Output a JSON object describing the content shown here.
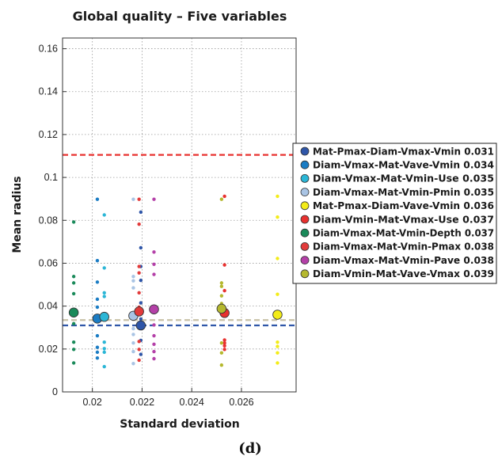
{
  "panel_label": "(d)",
  "chart_data": {
    "type": "scatter",
    "title": "Global quality – Five variables",
    "xlabel": "Standard deviation",
    "ylabel": "Mean radius",
    "xlim": [
      0.0188,
      0.0282
    ],
    "ylim": [
      0,
      0.165
    ],
    "x_ticks": [
      0.02,
      0.022,
      0.024,
      0.026
    ],
    "x_tick_labels": [
      "0.02",
      "0.022",
      "0.024",
      "0.026"
    ],
    "y_ticks": [
      0,
      0.02,
      0.04,
      0.06,
      0.08,
      0.1,
      0.12,
      0.14,
      0.16
    ],
    "y_tick_labels": [
      "0",
      "0.02",
      "0.04",
      "0.06",
      "0.08",
      "0.1",
      "0.12",
      "0.14",
      "0.16"
    ],
    "grid": true,
    "legend_position": "right",
    "reference_lines": [
      {
        "y": 0.1105,
        "color": "#e8312f",
        "style": "dashed"
      },
      {
        "y": 0.0335,
        "color": "#c8c0a6",
        "style": "dashed"
      },
      {
        "y": 0.031,
        "color": "#2f56a8",
        "style": "dashed"
      }
    ],
    "series": [
      {
        "name": "Mat-Pmax-Diam-Vmax-Vmin 0.031",
        "color": "#2f56a8",
        "mean": [
          0.02195,
          0.031
        ],
        "points": [
          [
            0.02195,
            0.0838
          ],
          [
            0.02195,
            0.0672
          ],
          [
            0.02195,
            0.0585
          ],
          [
            0.02195,
            0.052
          ],
          [
            0.02195,
            0.0415
          ],
          [
            0.02195,
            0.034
          ],
          [
            0.02195,
            0.024
          ],
          [
            0.02195,
            0.0175
          ]
        ]
      },
      {
        "name": "Diam-Vmax-Mat-Vave-Vmin 0.034",
        "color": "#1a7cc4",
        "mean": [
          0.0202,
          0.0342
        ],
        "points": [
          [
            0.0202,
            0.0898
          ],
          [
            0.0202,
            0.0612
          ],
          [
            0.0202,
            0.0512
          ],
          [
            0.0202,
            0.0432
          ],
          [
            0.0202,
            0.0395
          ],
          [
            0.0202,
            0.0262
          ],
          [
            0.0202,
            0.0208
          ],
          [
            0.0202,
            0.0185
          ],
          [
            0.0202,
            0.0158
          ]
        ]
      },
      {
        "name": "Diam-Vmax-Mat-Vmin-Use 0.035",
        "color": "#2bb6d6",
        "mean": [
          0.02048,
          0.035
        ],
        "points": [
          [
            0.02048,
            0.0825
          ],
          [
            0.02048,
            0.0578
          ],
          [
            0.02048,
            0.0462
          ],
          [
            0.02048,
            0.0445
          ],
          [
            0.02048,
            0.0232
          ],
          [
            0.02048,
            0.0202
          ],
          [
            0.02048,
            0.0185
          ],
          [
            0.02048,
            0.0118
          ]
        ]
      },
      {
        "name": "Diam-Vmax-Mat-Vmin-Pmin 0.035",
        "color": "#a9c4e4",
        "mean": [
          0.02165,
          0.0355
        ],
        "points": [
          [
            0.02165,
            0.0898
          ],
          [
            0.02165,
            0.0538
          ],
          [
            0.02165,
            0.0518
          ],
          [
            0.02165,
            0.0485
          ],
          [
            0.02165,
            0.0295
          ],
          [
            0.02165,
            0.0268
          ],
          [
            0.02165,
            0.0228
          ],
          [
            0.02165,
            0.0188
          ],
          [
            0.02165,
            0.0132
          ]
        ]
      },
      {
        "name": "Mat-Pmax-Diam-Vave-Vmin 0.036",
        "color": "#f3ec18",
        "mean": [
          0.02745,
          0.036
        ],
        "points": [
          [
            0.02745,
            0.0912
          ],
          [
            0.02745,
            0.0815
          ],
          [
            0.02745,
            0.0622
          ],
          [
            0.02745,
            0.0455
          ],
          [
            0.02745,
            0.0232
          ],
          [
            0.02745,
            0.0212
          ],
          [
            0.02745,
            0.0182
          ],
          [
            0.02745,
            0.0135
          ]
        ]
      },
      {
        "name": "Diam-Vmin-Mat-Vmax-Use 0.037",
        "color": "#e8312f",
        "mean": [
          0.02532,
          0.0368
        ],
        "points": [
          [
            0.02532,
            0.0912
          ],
          [
            0.02532,
            0.0592
          ],
          [
            0.02532,
            0.0472
          ],
          [
            0.02532,
            0.0242
          ],
          [
            0.02532,
            0.0228
          ],
          [
            0.02532,
            0.0215
          ],
          [
            0.02532,
            0.0198
          ]
        ]
      },
      {
        "name": "Diam-Vmax-Mat-Vmin-Depth 0.037",
        "color": "#1a8a5a",
        "mean": [
          0.01925,
          0.037
        ],
        "points": [
          [
            0.01925,
            0.0792
          ],
          [
            0.01925,
            0.0538
          ],
          [
            0.01925,
            0.0508
          ],
          [
            0.01925,
            0.0458
          ],
          [
            0.01925,
            0.0318
          ],
          [
            0.01925,
            0.0232
          ],
          [
            0.01925,
            0.0198
          ],
          [
            0.01925,
            0.0135
          ]
        ]
      },
      {
        "name": "Diam-Vmax-Mat-Vmin-Pmax 0.038",
        "color": "#e23a3a",
        "mean": [
          0.02188,
          0.0375
        ],
        "points": [
          [
            0.02188,
            0.0898
          ],
          [
            0.02188,
            0.0782
          ],
          [
            0.02188,
            0.0585
          ],
          [
            0.02188,
            0.0555
          ],
          [
            0.02188,
            0.0462
          ],
          [
            0.02188,
            0.0395
          ],
          [
            0.02188,
            0.0235
          ],
          [
            0.02188,
            0.0198
          ],
          [
            0.02188,
            0.0148
          ]
        ]
      },
      {
        "name": "Diam-Vmax-Mat-Vmin-Pave 0.038",
        "color": "#b440a8",
        "mean": [
          0.02248,
          0.0385
        ],
        "points": [
          [
            0.02248,
            0.0898
          ],
          [
            0.02248,
            0.0652
          ],
          [
            0.02248,
            0.0595
          ],
          [
            0.02248,
            0.0548
          ],
          [
            0.02248,
            0.0312
          ],
          [
            0.02248,
            0.0262
          ],
          [
            0.02248,
            0.0222
          ],
          [
            0.02248,
            0.0188
          ],
          [
            0.02248,
            0.0155
          ]
        ]
      },
      {
        "name": "Diam-Vmin-Mat-Vave-Vmax 0.039",
        "color": "#b5b82e",
        "mean": [
          0.0252,
          0.0388
        ],
        "points": [
          [
            0.0252,
            0.0898
          ],
          [
            0.0252,
            0.0508
          ],
          [
            0.0252,
            0.0492
          ],
          [
            0.0252,
            0.0448
          ],
          [
            0.0252,
            0.0412
          ],
          [
            0.0252,
            0.0228
          ],
          [
            0.0252,
            0.0182
          ],
          [
            0.0252,
            0.0125
          ]
        ]
      }
    ]
  }
}
